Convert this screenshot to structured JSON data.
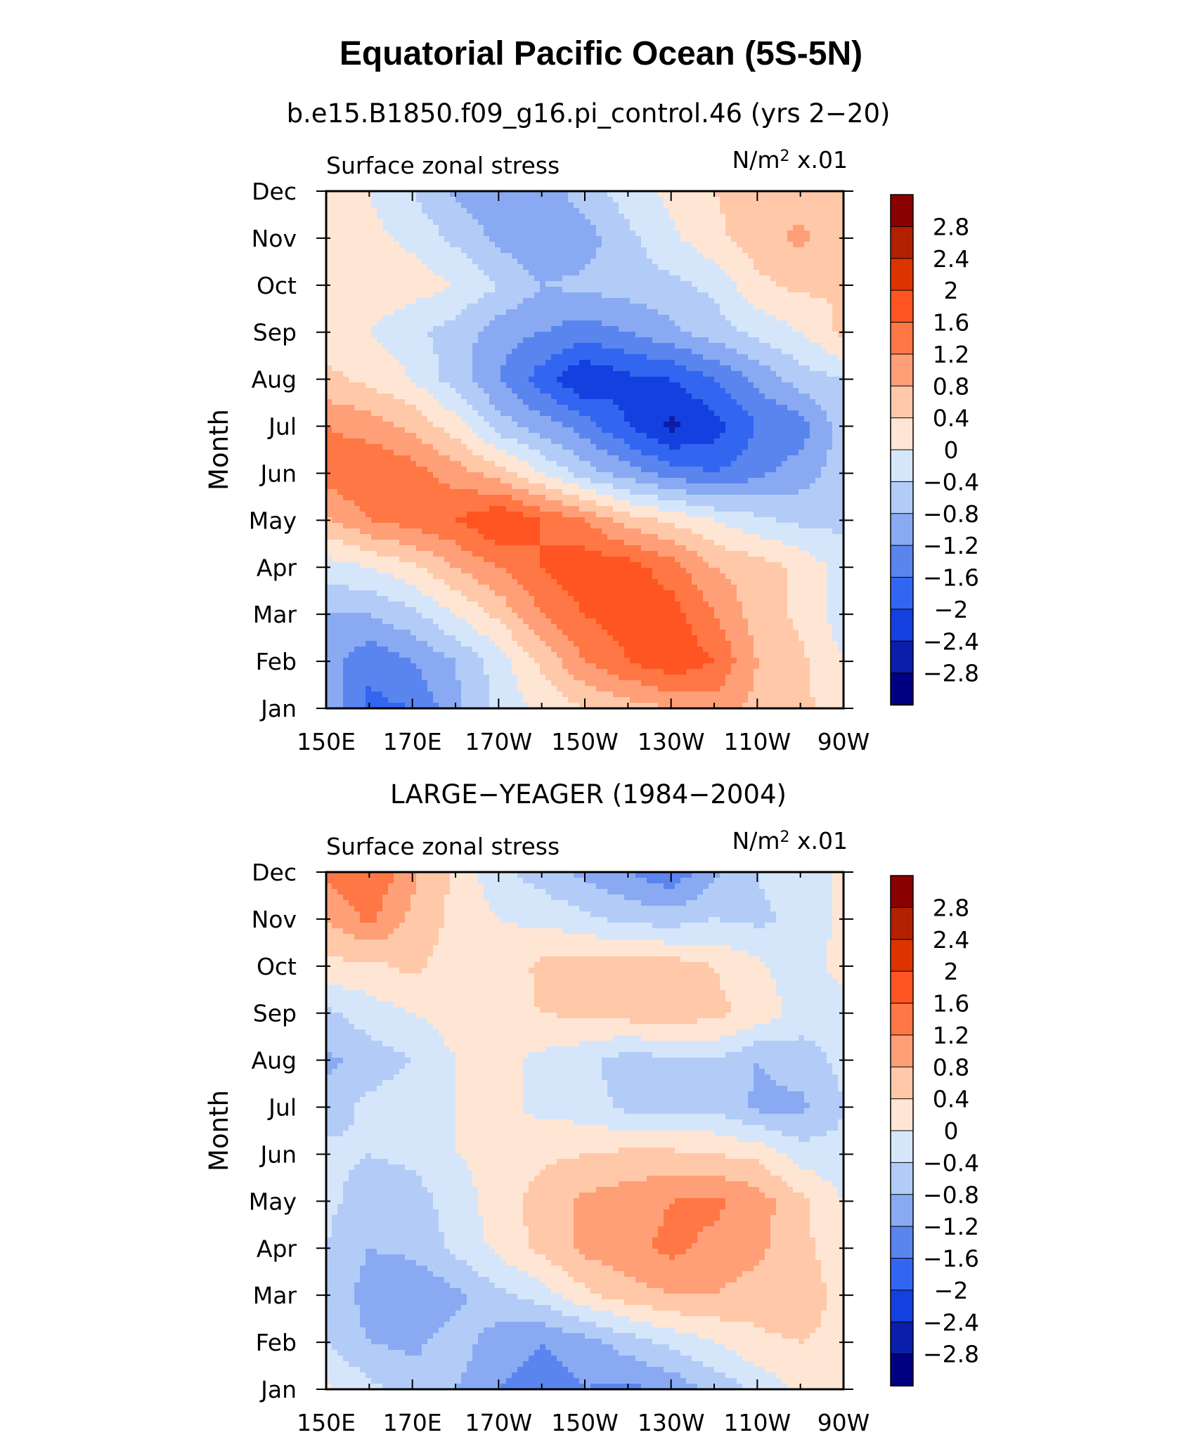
{
  "figure": {
    "title": "Equatorial Pacific Ocean (5S-5N)"
  },
  "colorbar": {
    "levels": [
      "2.8",
      "2.4",
      "2",
      "1.6",
      "1.2",
      "0.8",
      "0.4",
      "0",
      "−0.4",
      "−0.8",
      "−1.2",
      "−1.6",
      "−2",
      "−2.4",
      "−2.8"
    ],
    "colors": [
      "#8b0000",
      "#b22000",
      "#dd3300",
      "#ff5522",
      "#ff7744",
      "#ff9f77",
      "#ffc8a8",
      "#ffe6d4",
      "#d6e6fa",
      "#b3ccf7",
      "#89aaf2",
      "#5a85ee",
      "#3366f0",
      "#1440e0",
      "#0a1eaa",
      "#000080"
    ]
  },
  "chart_data": [
    {
      "type": "heatmap",
      "subtitle": "b.e15.B1850.f09_g16.pi_control.46 (yrs 2−20)",
      "left_label": "Surface zonal stress",
      "right_label": "N/m",
      "right_label_sup": "2",
      "right_label_suffix": " x.01",
      "ylabel": "Month",
      "x_ticks": [
        "150E",
        "170E",
        "170W",
        "150W",
        "130W",
        "110W",
        "90W"
      ],
      "y_ticks": [
        "Jan",
        "Feb",
        "Mar",
        "Apr",
        "May",
        "Jun",
        "Jul",
        "Aug",
        "Sep",
        "Oct",
        "Nov",
        "Dec"
      ],
      "xlim": [
        150,
        270
      ],
      "ylim": [
        1,
        12
      ],
      "units": "N/m2 x.01",
      "lon": [
        150,
        160,
        170,
        180,
        190,
        200,
        210,
        220,
        230,
        240,
        250,
        260,
        270
      ],
      "values": [
        [
          -0.9,
          -1.7,
          -1.6,
          -0.9,
          -0.3,
          0.1,
          0.4,
          0.6,
          0.8,
          1.0,
          0.7,
          0.5,
          0.2
        ],
        [
          -1.0,
          -1.5,
          -1.2,
          -0.8,
          -0.2,
          0.5,
          1.2,
          1.6,
          1.9,
          1.6,
          0.8,
          0.5,
          0.0
        ],
        [
          -0.8,
          -0.8,
          -0.5,
          0.0,
          0.5,
          1.2,
          1.6,
          1.8,
          1.8,
          1.2,
          0.6,
          0.3,
          -0.2
        ],
        [
          -0.2,
          0.0,
          0.3,
          0.8,
          1.2,
          1.6,
          1.9,
          1.8,
          1.4,
          0.8,
          0.6,
          0.3,
          -0.2
        ],
        [
          0.7,
          1.2,
          1.4,
          1.6,
          2.0,
          1.6,
          1.2,
          0.6,
          0.3,
          0.0,
          -0.3,
          -0.5,
          -0.5
        ],
        [
          1.4,
          1.6,
          1.4,
          1.0,
          0.6,
          0.0,
          -0.6,
          -1.0,
          -1.4,
          -1.6,
          -1.3,
          -1.0,
          -0.6
        ],
        [
          1.2,
          1.0,
          0.7,
          0.2,
          -0.6,
          -1.0,
          -1.4,
          -2.0,
          -2.5,
          -2.2,
          -1.6,
          -1.4,
          -0.6
        ],
        [
          0.5,
          0.3,
          0.0,
          -0.6,
          -1.2,
          -1.8,
          -2.4,
          -2.1,
          -2.0,
          -1.6,
          -1.1,
          -0.6,
          -0.4
        ],
        [
          0.2,
          0.0,
          -0.3,
          -0.6,
          -1.0,
          -1.2,
          -1.4,
          -1.2,
          -0.9,
          -0.6,
          -0.3,
          0.0,
          0.5
        ],
        [
          0.2,
          0.2,
          0.2,
          0.0,
          -0.4,
          -0.8,
          -0.7,
          -0.6,
          -0.5,
          -0.3,
          0.3,
          0.5,
          0.4
        ],
        [
          0.3,
          0.1,
          -0.1,
          -0.5,
          -0.9,
          -1.2,
          -1.0,
          -0.5,
          -0.1,
          0.3,
          0.6,
          0.9,
          0.5
        ],
        [
          0.2,
          0.0,
          -0.4,
          -0.9,
          -1.1,
          -1.0,
          -0.6,
          -0.2,
          0.1,
          0.4,
          0.6,
          0.6,
          0.5
        ]
      ]
    },
    {
      "type": "heatmap",
      "subtitle": "LARGE−YEAGER (1984−2004)",
      "left_label": "Surface zonal stress",
      "right_label": "N/m",
      "right_label_sup": "2",
      "right_label_suffix": " x.01",
      "ylabel": "Month",
      "x_ticks": [
        "150E",
        "170E",
        "170W",
        "150W",
        "130W",
        "110W",
        "90W"
      ],
      "y_ticks": [
        "Jan",
        "Feb",
        "Mar",
        "Apr",
        "May",
        "Jun",
        "Jul",
        "Aug",
        "Sep",
        "Oct",
        "Nov",
        "Dec"
      ],
      "xlim": [
        150,
        270
      ],
      "ylim": [
        1,
        12
      ],
      "units": "N/m2 x.01",
      "lon": [
        150,
        160,
        170,
        180,
        190,
        200,
        210,
        220,
        230,
        240,
        250,
        260,
        270
      ],
      "values": [
        [
          0.1,
          -0.3,
          -0.6,
          -0.8,
          -1.2,
          -1.4,
          -1.2,
          -1.3,
          -1.1,
          -0.7,
          -0.3,
          0.1,
          0.2
        ],
        [
          -0.4,
          -0.8,
          -0.9,
          -0.6,
          -1.0,
          -1.2,
          -1.0,
          -0.6,
          -0.3,
          0.0,
          0.3,
          0.4,
          0.3
        ],
        [
          -0.4,
          -1.0,
          -1.2,
          -0.9,
          -0.5,
          -0.2,
          0.3,
          0.6,
          0.8,
          0.8,
          0.6,
          0.7,
          0.2
        ],
        [
          -0.4,
          -0.8,
          -0.7,
          -0.3,
          0.1,
          0.5,
          0.9,
          1.1,
          1.3,
          1.1,
          0.9,
          0.5,
          0.2
        ],
        [
          -0.3,
          -0.6,
          -0.6,
          -0.2,
          0.2,
          0.6,
          0.9,
          1.0,
          1.2,
          1.3,
          1.0,
          0.5,
          0.0
        ],
        [
          -0.3,
          -0.4,
          -0.3,
          0.0,
          0.1,
          0.3,
          0.4,
          0.5,
          0.5,
          0.4,
          0.3,
          -0.2,
          -0.3
        ],
        [
          -0.6,
          -0.3,
          -0.2,
          0.0,
          0.1,
          -0.1,
          -0.2,
          -0.5,
          -0.6,
          -0.5,
          -0.9,
          -0.9,
          -0.4
        ],
        [
          -0.9,
          -0.6,
          -0.4,
          0.0,
          0.1,
          -0.1,
          -0.3,
          -0.6,
          -0.5,
          -0.4,
          -0.8,
          -0.6,
          -0.3
        ],
        [
          -0.5,
          -0.2,
          0.0,
          0.2,
          0.3,
          0.4,
          0.5,
          0.6,
          0.7,
          0.5,
          0.3,
          -0.2,
          -0.3
        ],
        [
          0.3,
          0.3,
          0.5,
          0.2,
          0.1,
          0.5,
          0.6,
          0.6,
          0.6,
          0.4,
          0.1,
          -0.3,
          0.2
        ],
        [
          0.8,
          1.3,
          0.7,
          0.3,
          0.0,
          -0.1,
          -0.3,
          -0.5,
          -0.6,
          -0.4,
          -0.5,
          -0.3,
          0.1
        ],
        [
          1.3,
          1.6,
          0.9,
          0.3,
          -0.3,
          -0.6,
          -0.9,
          -1.2,
          -1.5,
          -0.9,
          -0.4,
          0.0,
          0.0
        ]
      ]
    }
  ]
}
